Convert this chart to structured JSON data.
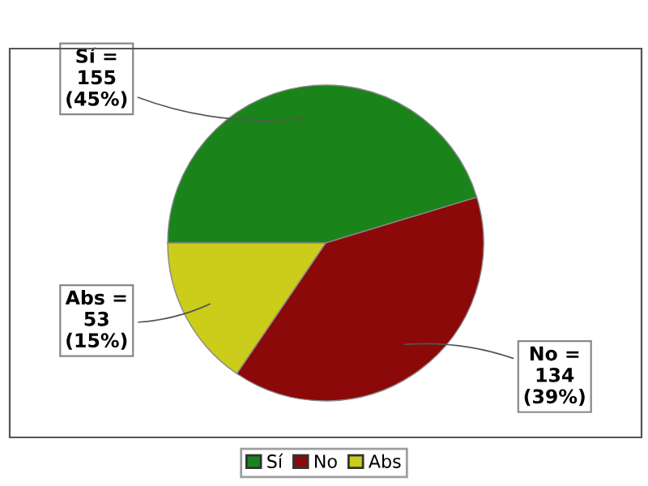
{
  "chart_data": {
    "type": "pie",
    "categories": [
      "Sí",
      "No",
      "Abs"
    ],
    "values": [
      155,
      134,
      53
    ],
    "colors": [
      "#1a841a",
      "#8b0909",
      "#cccc1a"
    ],
    "value_labels": [
      "Sí =\n155\n(45%)",
      "No =\n134\n(39%)",
      "Abs =\n53\n(15%)"
    ],
    "legend": "bottom"
  }
}
